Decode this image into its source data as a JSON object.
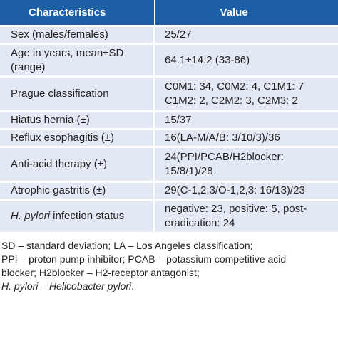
{
  "table": {
    "headers": {
      "characteristics": "Characteristics",
      "value": "Value"
    },
    "rows": [
      {
        "characteristic": "Sex (males/females)",
        "value": "25/27"
      },
      {
        "characteristic": "Age in years, mean±SD (range)",
        "value": "64.1±14.2 (33-86)"
      },
      {
        "characteristic": "Prague classification",
        "value": "C0M1: 34, C0M2: 4, C1M1: 7 C1M2: 2, C2M2: 3, C2M3: 2"
      },
      {
        "characteristic": "Hiatus hernia (±)",
        "value": "15/37"
      },
      {
        "characteristic": "Reflux esophagitis (±)",
        "value": "16(LA-M/A/B: 3/10/3)/36"
      },
      {
        "characteristic": "Anti-acid therapy (±)",
        "value": "24(PPI/PCAB/H2blocker: 15/8/1)/28"
      },
      {
        "characteristic": "Atrophic gastritis (±)",
        "value": "29(C-1,2,3/O-1,2,3: 16/13)/23"
      },
      {
        "characteristic_italic": "H. pylori",
        "characteristic_rest": " infection status",
        "value": "negative: 23, positive: 5, post-eradication: 24"
      }
    ]
  },
  "footnotes": {
    "line1": "SD – standard deviation; LA – Los Angeles classification;",
    "line2": "PPI – proton pump inhibitor; PCAB – potassium competitive acid",
    "line3": "blocker; H2blocker – H2-receptor antagonist;",
    "line4_abbr": "H. pylori",
    "line4_sep": " – ",
    "line4_full": "Helicobacter pylori",
    "line4_end": "."
  }
}
